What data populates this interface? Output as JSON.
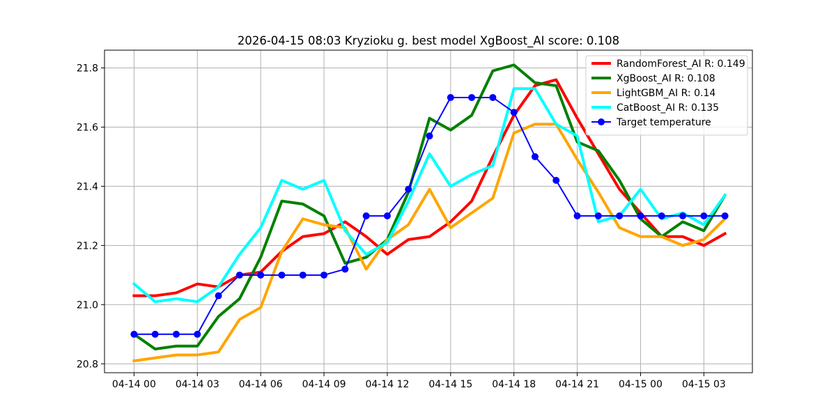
{
  "chart_data": {
    "type": "line",
    "title": "2026-04-15 08:03 Kryzioku g. best model XgBoost_AI score: 0.108",
    "xlabel": "",
    "ylabel": "",
    "x_ticks": [
      "04-14 00",
      "04-14 03",
      "04-14 06",
      "04-14 09",
      "04-14 12",
      "04-14 15",
      "04-14 18",
      "04-14 21",
      "04-15 00",
      "04-15 03"
    ],
    "y_ticks": [
      "20.8",
      "21.0",
      "21.2",
      "21.4",
      "21.6",
      "21.8"
    ],
    "ylim": [
      20.77,
      21.86
    ],
    "xlim_hours": [
      -1.4,
      29.3
    ],
    "grid": true,
    "legend_position": "top-right",
    "x_hours": [
      0,
      1,
      2,
      3,
      4,
      5,
      6,
      7,
      8,
      9,
      10,
      11,
      12,
      13,
      14,
      15,
      16,
      17,
      18,
      19,
      20,
      21,
      22,
      23,
      24,
      25,
      26,
      27,
      28
    ],
    "series": [
      {
        "name": "RandomForest_AI R: 0.149",
        "color": "#ff0000",
        "marker": false,
        "values": [
          21.03,
          21.03,
          21.04,
          21.07,
          21.06,
          21.1,
          21.11,
          21.18,
          21.23,
          21.24,
          21.28,
          21.23,
          21.17,
          21.22,
          21.23,
          21.28,
          21.35,
          21.5,
          21.64,
          21.74,
          21.76,
          21.63,
          21.51,
          21.39,
          21.31,
          21.23,
          21.23,
          21.2,
          21.24
        ]
      },
      {
        "name": "XgBoost_AI R: 0.108",
        "color": "#008000",
        "marker": false,
        "values": [
          20.9,
          20.85,
          20.86,
          20.86,
          20.96,
          21.02,
          21.16,
          21.35,
          21.34,
          21.3,
          21.14,
          21.16,
          21.22,
          21.38,
          21.63,
          21.59,
          21.64,
          21.79,
          21.81,
          21.75,
          21.74,
          21.55,
          21.52,
          21.42,
          21.29,
          21.23,
          21.28,
          21.25,
          21.37
        ]
      },
      {
        "name": "LightGBM_AI R: 0.14",
        "color": "#ffa500",
        "marker": false,
        "values": [
          20.81,
          20.82,
          20.83,
          20.83,
          20.84,
          20.95,
          20.99,
          21.18,
          21.29,
          21.27,
          21.26,
          21.12,
          21.22,
          21.27,
          21.39,
          21.26,
          21.31,
          21.36,
          21.58,
          21.61,
          21.61,
          21.49,
          21.38,
          21.26,
          21.23,
          21.23,
          21.2,
          21.22,
          21.29
        ]
      },
      {
        "name": "CatBoost_AI R: 0.135",
        "color": "#00ffff",
        "marker": false,
        "values": [
          21.07,
          21.01,
          21.02,
          21.01,
          21.06,
          21.17,
          21.26,
          21.42,
          21.39,
          21.42,
          21.25,
          21.17,
          21.21,
          21.35,
          21.51,
          21.4,
          21.44,
          21.47,
          21.73,
          21.73,
          21.61,
          21.57,
          21.28,
          21.3,
          21.39,
          21.29,
          21.31,
          21.27,
          21.37
        ]
      },
      {
        "name": "Target temperature",
        "color": "#0000ff",
        "marker": true,
        "values": [
          20.9,
          20.9,
          20.9,
          20.9,
          21.03,
          21.1,
          21.1,
          21.1,
          21.1,
          21.1,
          21.12,
          21.3,
          21.3,
          21.39,
          21.57,
          21.7,
          21.7,
          21.7,
          21.65,
          21.5,
          21.42,
          21.3,
          21.3,
          21.3,
          21.3,
          21.3,
          21.3,
          21.3,
          21.3
        ]
      }
    ]
  }
}
